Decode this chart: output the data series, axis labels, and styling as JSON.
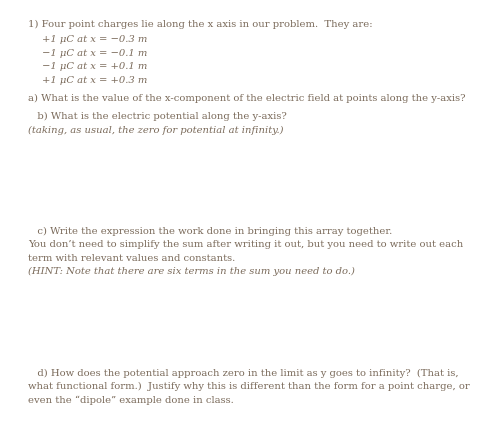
{
  "bg_color": "#ffffff",
  "text_color": "#7a6a5a",
  "title_line": "1) Four point charges lie along the x axis in our problem.  They are:",
  "charges": [
    "+1 μC at x = −0.3 m",
    "−1 μC at x = −0.1 m",
    "−1 μC at x = +0.1 m",
    "+1 μC at x = +0.3 m"
  ],
  "part_a_label": "a) What is the value of the x-component of the electric field at points along the y-axis?",
  "part_b_label": "   b) What is the electric potential along the y-axis?",
  "part_b_italic": "(taking, as usual, the zero for potential at infinity.)",
  "part_c_label": "   c) Write the expression the work done in bringing this array together.",
  "part_c_line2": "You don’t need to simplify the sum after writing it out, but you need to write out each",
  "part_c_line3": "term with relevant values and constants.",
  "part_c_italic": "(HINT: Note that there are six terms in the sum you need to do.)",
  "part_d_label": "   d) How does the potential approach zero in the limit as y goes to infinity?  (That is,",
  "part_d_line2": "what functional form.)  Justify why this is different than the form for a point charge, or",
  "part_d_line3": "even the “dipole” example done in class.",
  "font_size": 7.2,
  "indent_title": 0.055,
  "indent_charges": 0.13,
  "indent_text": 0.03
}
